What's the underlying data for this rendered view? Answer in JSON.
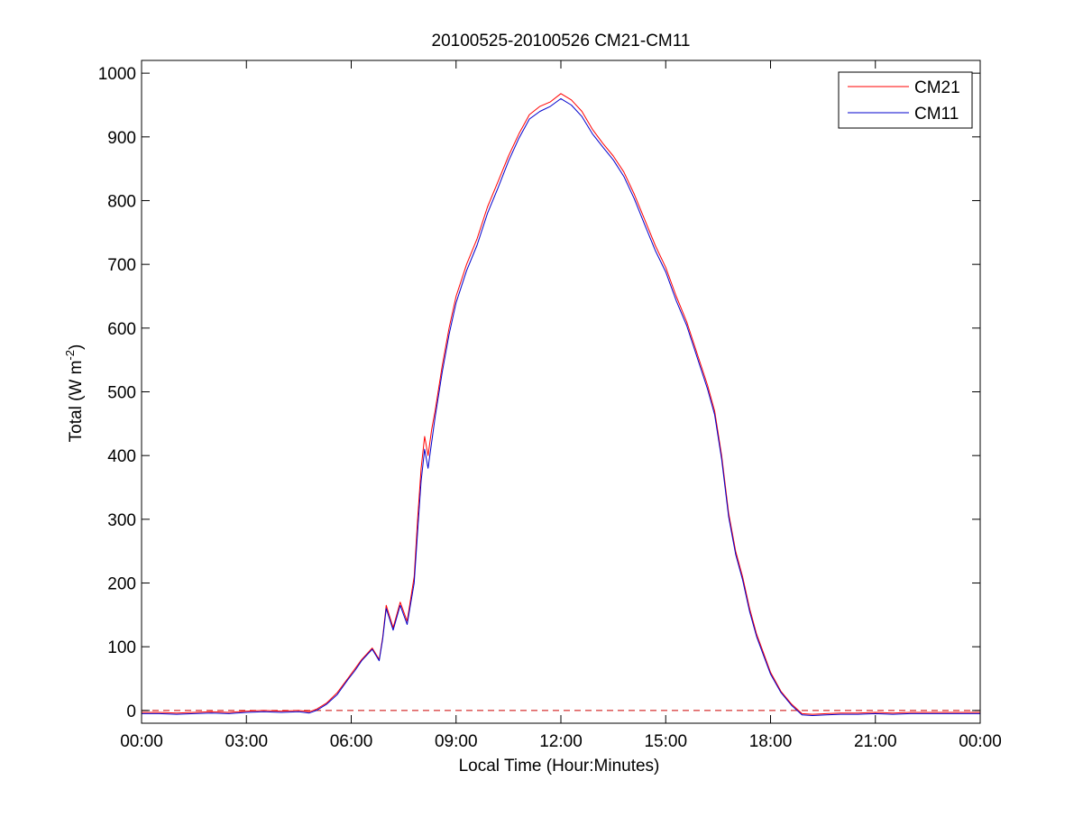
{
  "chart_data": {
    "type": "line",
    "title": "20100525-20100526 CM21-CM11",
    "xlabel": "Local Time (Hour:Minutes)",
    "ylabel_main": "Total (W m",
    "ylabel_sup": "-2",
    "ylabel_close": ")",
    "xlim_hours": [
      0,
      24
    ],
    "ylim": [
      -20,
      1020
    ],
    "x_ticks_hours": [
      0,
      3,
      6,
      9,
      12,
      15,
      18,
      21,
      24
    ],
    "x_tick_labels": [
      "00:00",
      "03:00",
      "06:00",
      "09:00",
      "12:00",
      "15:00",
      "18:00",
      "21:00",
      "00:00"
    ],
    "y_ticks": [
      0,
      100,
      200,
      300,
      400,
      500,
      600,
      700,
      800,
      900,
      1000
    ],
    "y_tick_labels": [
      "0",
      "100",
      "200",
      "300",
      "400",
      "500",
      "600",
      "700",
      "800",
      "900",
      "1000"
    ],
    "grid": false,
    "legend_position": "top-right",
    "reference_line": {
      "y": 0,
      "style": "dashed",
      "color": "#cc0000"
    },
    "series": [
      {
        "name": "CM21",
        "color": "#ff0000",
        "x_hours": [
          0,
          0.5,
          1,
          1.5,
          2,
          2.5,
          3,
          3.5,
          4,
          4.5,
          4.8,
          5,
          5.3,
          5.6,
          5.9,
          6.1,
          6.3,
          6.6,
          6.8,
          6.9,
          7.0,
          7.2,
          7.4,
          7.6,
          7.8,
          7.9,
          8.0,
          8.1,
          8.2,
          8.3,
          8.4,
          8.6,
          8.8,
          9.0,
          9.3,
          9.6,
          9.9,
          10.2,
          10.5,
          10.8,
          11.1,
          11.4,
          11.7,
          12.0,
          12.3,
          12.6,
          12.9,
          13.2,
          13.5,
          13.8,
          14.1,
          14.4,
          14.7,
          15.0,
          15.3,
          15.6,
          15.9,
          16.2,
          16.4,
          16.6,
          16.8,
          17.0,
          17.2,
          17.4,
          17.6,
          17.8,
          18.0,
          18.3,
          18.6,
          18.9,
          19.2,
          19.6,
          20,
          20.5,
          21,
          21.5,
          22,
          22.5,
          23,
          23.5,
          24
        ],
        "values": [
          -3,
          -3,
          -4,
          -3,
          -2,
          -3,
          -1,
          0,
          -1,
          0,
          -2,
          2,
          12,
          28,
          50,
          65,
          80,
          98,
          80,
          115,
          165,
          130,
          170,
          140,
          210,
          300,
          380,
          430,
          400,
          440,
          470,
          540,
          600,
          650,
          700,
          740,
          790,
          830,
          870,
          905,
          935,
          948,
          955,
          968,
          958,
          940,
          912,
          890,
          870,
          845,
          810,
          770,
          730,
          695,
          650,
          610,
          560,
          510,
          470,
          400,
          310,
          250,
          210,
          160,
          120,
          90,
          60,
          30,
          10,
          -5,
          -6,
          -5,
          -4,
          -4,
          -3,
          -4,
          -3,
          -3,
          -3,
          -3,
          -3
        ]
      },
      {
        "name": "CM11",
        "color": "#0000cc",
        "x_hours": [
          0,
          0.5,
          1,
          1.5,
          2,
          2.5,
          3,
          3.5,
          4,
          4.5,
          4.8,
          5,
          5.3,
          5.6,
          5.9,
          6.1,
          6.3,
          6.6,
          6.8,
          6.9,
          7.0,
          7.2,
          7.4,
          7.6,
          7.8,
          7.9,
          8.0,
          8.1,
          8.2,
          8.3,
          8.4,
          8.6,
          8.8,
          9.0,
          9.3,
          9.6,
          9.9,
          10.2,
          10.5,
          10.8,
          11.1,
          11.4,
          11.7,
          12.0,
          12.3,
          12.6,
          12.9,
          13.2,
          13.5,
          13.8,
          14.1,
          14.4,
          14.7,
          15.0,
          15.3,
          15.6,
          15.9,
          16.2,
          16.4,
          16.6,
          16.8,
          17.0,
          17.2,
          17.4,
          17.6,
          17.8,
          18.0,
          18.3,
          18.6,
          18.9,
          19.2,
          19.6,
          20,
          20.5,
          21,
          21.5,
          22,
          22.5,
          23,
          23.5,
          24
        ],
        "values": [
          -5,
          -5,
          -6,
          -5,
          -4,
          -5,
          -3,
          -2,
          -3,
          -2,
          -4,
          0,
          10,
          25,
          48,
          62,
          78,
          96,
          78,
          112,
          160,
          126,
          165,
          135,
          200,
          280,
          360,
          410,
          380,
          420,
          460,
          530,
          590,
          640,
          690,
          730,
          780,
          820,
          862,
          898,
          928,
          940,
          948,
          960,
          950,
          932,
          905,
          884,
          864,
          838,
          803,
          762,
          722,
          688,
          643,
          604,
          554,
          504,
          464,
          394,
          304,
          245,
          205,
          155,
          116,
          86,
          57,
          28,
          8,
          -7,
          -8,
          -7,
          -6,
          -6,
          -5,
          -6,
          -5,
          -5,
          -5,
          -5,
          -5
        ]
      }
    ]
  }
}
